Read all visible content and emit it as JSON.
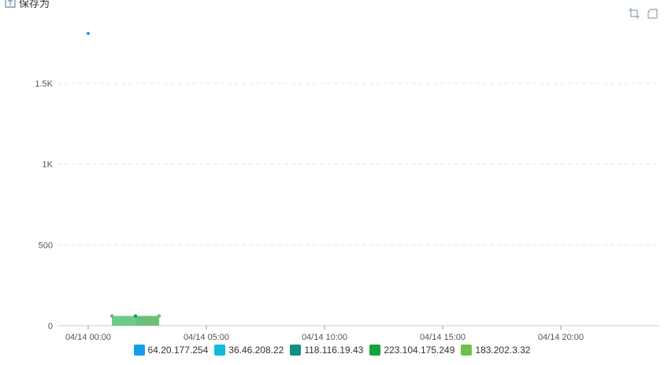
{
  "toolbar": {
    "save_label": "保存为",
    "save_icon": "upload-icon",
    "tools": [
      {
        "name": "crop-icon"
      },
      {
        "name": "restore-icon"
      }
    ],
    "icon_color": "#8aa3b8"
  },
  "chart_data": {
    "type": "area",
    "title": "",
    "xlabel": "",
    "ylabel": "",
    "x_ticks": [
      "04/14 00:00",
      "04/14 05:00",
      "04/14 10:00",
      "04/14 15:00",
      "04/14 20:00"
    ],
    "x_tick_hours": [
      0,
      5,
      10,
      15,
      20
    ],
    "x_range_hours": [
      -1.3,
      24.2
    ],
    "y_ticks": [
      "0",
      "500",
      "1K",
      "1.5K"
    ],
    "y_tick_values": [
      0,
      500,
      1000,
      1500
    ],
    "ylim": [
      0,
      1900
    ],
    "grid": true,
    "legend_position": "bottom",
    "series": [
      {
        "name": "64.20.177.254",
        "color": "#0fa0e8",
        "points": [
          [
            0,
            1810
          ]
        ]
      },
      {
        "name": "36.46.208.22",
        "color": "#12bcd6",
        "points": [
          [
            1,
            60
          ],
          [
            2,
            60
          ]
        ]
      },
      {
        "name": "118.116.19.43",
        "color": "#0d8f83",
        "points": [
          [
            2,
            60
          ],
          [
            3,
            60
          ]
        ]
      },
      {
        "name": "223.104.175.249",
        "color": "#13a53a",
        "points": [
          [
            1,
            60
          ]
        ]
      },
      {
        "name": "183.202.3.32",
        "color": "#6bc34b",
        "points": [
          [
            1,
            60
          ],
          [
            3,
            60
          ]
        ]
      }
    ]
  }
}
